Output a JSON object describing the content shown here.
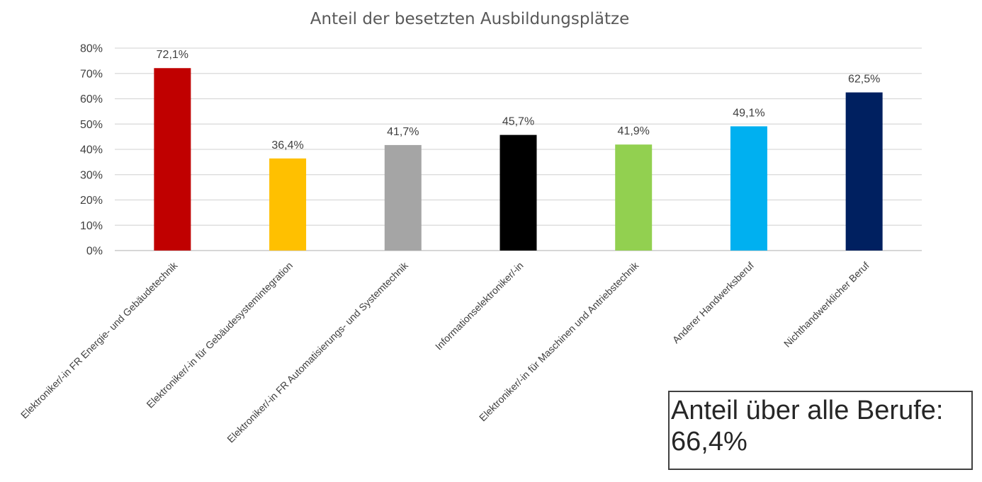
{
  "chart_data": {
    "type": "bar",
    "title": "Anteil der besetzten Ausbildungsplätze",
    "xlabel": "",
    "ylabel": "",
    "ylim": [
      0,
      80
    ],
    "grid": true,
    "legend": "none",
    "y_ticks": [
      {
        "value": 0,
        "label": "0%"
      },
      {
        "value": 10,
        "label": "10%"
      },
      {
        "value": 20,
        "label": "20%"
      },
      {
        "value": 30,
        "label": "30%"
      },
      {
        "value": 40,
        "label": "40%"
      },
      {
        "value": 50,
        "label": "50%"
      },
      {
        "value": 60,
        "label": "60%"
      },
      {
        "value": 70,
        "label": "70%"
      },
      {
        "value": 80,
        "label": "80%"
      }
    ],
    "categories": [
      "Elektroniker/-in FR Energie- und Gebäudetechnik",
      "Elektroniker/-in für Gebäudesystemintegration",
      "Elektroniker/-in FR Automatisierungs- und Systemtechnik",
      "Informationselektroniker/-in",
      "Elektroniker/-in für Maschinen und Antriebstechnik",
      "Anderer Handwerksberuf",
      "Nichthandwerklicher Beruf"
    ],
    "values": [
      72.1,
      36.4,
      41.7,
      45.7,
      41.9,
      49.1,
      62.5
    ],
    "data_labels": [
      "72,1%",
      "36,4%",
      "41,7%",
      "45,7%",
      "41,9%",
      "49,1%",
      "62,5%"
    ],
    "colors": [
      "#c00000",
      "#ffc000",
      "#a5a5a5",
      "#000000",
      "#92d050",
      "#00b0f0",
      "#002060"
    ]
  },
  "annotation": {
    "line1": "Anteil über alle Berufe:",
    "line2": "66,4%"
  }
}
